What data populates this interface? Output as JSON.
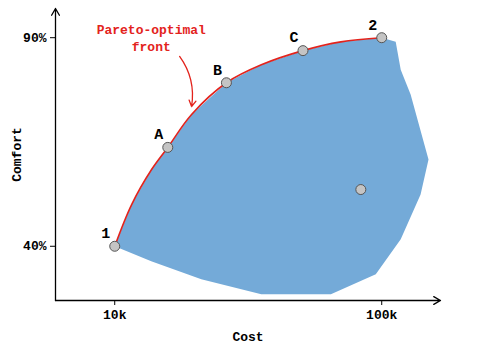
{
  "chart_data": {
    "type": "scatter",
    "x_label": "Cost",
    "y_label": "Comfort",
    "log": "x",
    "grid": false,
    "xlim": [
      6000,
      166000
    ],
    "ylim": [
      27,
      97
    ],
    "xticks": [
      {
        "value": 10000,
        "label": "10k"
      },
      {
        "value": 100000,
        "label": "100k"
      }
    ],
    "yticks": [
      {
        "value": 40,
        "label": "40%"
      },
      {
        "value": 90,
        "label": "90%"
      }
    ],
    "points": {
      "color": "#c4c4c4",
      "labels": [
        "1",
        "A",
        "B",
        "C",
        "2",
        null
      ],
      "x": [
        10000,
        15800,
        26200,
        50700,
        100000,
        83500
      ],
      "y": [
        40,
        63.7,
        79.2,
        86.9,
        90,
        53.6
      ]
    },
    "front": {
      "color": "#e3231c",
      "x": [
        10000,
        11570,
        13740,
        15800,
        19400,
        26200,
        35400,
        50700,
        70300,
        100000
      ],
      "y": [
        40,
        50.0,
        58.4,
        63.7,
        71.6,
        79.2,
        83.5,
        86.9,
        89.0,
        90
      ]
    },
    "region": {
      "color": "#74aad8",
      "x": [
        10000,
        11570,
        13740,
        15800,
        19400,
        26200,
        35400,
        50700,
        70300,
        100000,
        112800,
        117800,
        128300,
        149700,
        139800,
        117800,
        95000,
        64500,
        35400,
        21100,
        13700
      ],
      "y": [
        40,
        50.0,
        58.4,
        63.7,
        71.6,
        79.2,
        83.5,
        86.9,
        89.0,
        90,
        89.0,
        82.3,
        76.4,
        60.8,
        52.4,
        41.7,
        33.3,
        28.5,
        28.5,
        32.1,
        36.4
      ]
    },
    "annotation": {
      "text": "Pareto-optimal front",
      "color": "#e3231c",
      "x": 13700,
      "y": 90.1,
      "arrow_x": [
        17500,
        19400
      ],
      "arrow_y": [
        85.5,
        73.5
      ]
    }
  }
}
